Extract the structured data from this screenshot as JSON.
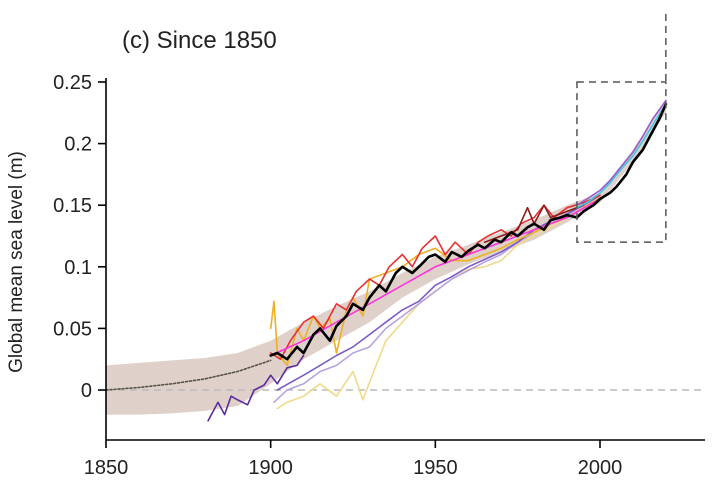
{
  "chart_data": {
    "type": "line",
    "title": "(c)  Since 1850",
    "xlabel": "",
    "ylabel": "Global mean sea level (m)",
    "xlim": [
      1850,
      2030
    ],
    "ylim": [
      -0.04,
      0.26
    ],
    "xticks": [
      1850,
      1900,
      1950,
      2000
    ],
    "yticks": [
      0.25,
      0.2,
      0.15,
      0.1,
      0.05,
      0
    ],
    "ytick_labels": [
      "0.25",
      "0.2",
      "0.15",
      "0.1",
      "0.05",
      "0"
    ],
    "grid": false,
    "legend": "none",
    "zero_line": {
      "y": 0,
      "style": "dashed",
      "color": "#bbbbbb"
    },
    "inset_box": {
      "x": [
        1993,
        2020
      ],
      "y": [
        0.12,
        0.25
      ],
      "style": "dashed"
    },
    "uncertainty_band": {
      "color": "#d9c8c1",
      "x": [
        1850,
        1860,
        1870,
        1880,
        1890,
        1900,
        1910,
        1920,
        1930,
        1940,
        1950,
        1960,
        1970,
        1980,
        1990,
        2000,
        2010,
        2020
      ],
      "lower": [
        -0.02,
        -0.02,
        -0.019,
        -0.017,
        -0.013,
        0.005,
        0.025,
        0.04,
        0.055,
        0.075,
        0.09,
        0.102,
        0.112,
        0.122,
        0.136,
        0.152,
        0.185,
        0.225
      ],
      "upper": [
        0.02,
        0.022,
        0.024,
        0.026,
        0.03,
        0.04,
        0.055,
        0.068,
        0.08,
        0.095,
        0.108,
        0.118,
        0.128,
        0.138,
        0.15,
        0.16,
        0.195,
        0.235
      ]
    },
    "series": [
      {
        "color": "#555544",
        "dash": "2,2",
        "x": [
          1850,
          1860,
          1870,
          1880,
          1890,
          1900
        ],
        "y": [
          0.0,
          0.002,
          0.005,
          0.009,
          0.015,
          0.024
        ]
      },
      {
        "color": "#5b2c9f",
        "x": [
          1881,
          1884,
          1886,
          1888,
          1890,
          1893,
          1895,
          1898,
          1900,
          1902,
          1905,
          1908,
          1910
        ],
        "y": [
          -0.025,
          -0.01,
          -0.02,
          -0.005,
          -0.008,
          -0.012,
          0.0,
          0.004,
          0.012,
          0.005,
          0.018,
          0.02,
          0.028
        ]
      },
      {
        "color": "#f0d98a",
        "x": [
          1902,
          1905,
          1910,
          1915,
          1920,
          1925,
          1928,
          1932,
          1935,
          1940,
          1945,
          1950,
          1955,
          1960,
          1965,
          1970,
          1975,
          1980,
          1985,
          1990,
          1995,
          2000
        ],
        "y": [
          -0.015,
          -0.01,
          -0.005,
          0.005,
          -0.005,
          0.015,
          -0.008,
          0.02,
          0.04,
          0.055,
          0.07,
          0.08,
          0.09,
          0.098,
          0.1,
          0.105,
          0.118,
          0.125,
          0.132,
          0.14,
          0.148,
          0.156
        ]
      },
      {
        "color": "#b8a3dc",
        "x": [
          1901,
          1905,
          1910,
          1915,
          1920,
          1925,
          1930,
          1935,
          1940,
          1945,
          1950,
          1955,
          1960,
          1965,
          1970,
          1975,
          1980,
          1985,
          1990,
          1995,
          2000
        ],
        "y": [
          -0.01,
          0.0,
          0.005,
          0.015,
          0.02,
          0.03,
          0.035,
          0.05,
          0.06,
          0.07,
          0.08,
          0.09,
          0.097,
          0.104,
          0.11,
          0.12,
          0.128,
          0.135,
          0.142,
          0.15,
          0.158
        ]
      },
      {
        "color": "#7b5cc6",
        "x": [
          1902,
          1906,
          1910,
          1915,
          1920,
          1925,
          1930,
          1935,
          1940,
          1945,
          1950,
          1955,
          1960,
          1965,
          1970,
          1975,
          1980,
          1985,
          1990,
          1995,
          2000
        ],
        "y": [
          0.0,
          0.006,
          0.012,
          0.02,
          0.028,
          0.035,
          0.045,
          0.055,
          0.065,
          0.072,
          0.085,
          0.092,
          0.1,
          0.106,
          0.112,
          0.12,
          0.13,
          0.137,
          0.143,
          0.15,
          0.158
        ]
      },
      {
        "color": "#f0b020",
        "x": [
          1900,
          1901,
          1902,
          1905,
          1908,
          1910,
          1913,
          1915,
          1918,
          1920,
          1923,
          1925,
          1928,
          1930,
          1935,
          1940,
          1945,
          1950,
          1955,
          1960,
          1965,
          1970,
          1975,
          1980,
          1985,
          1990,
          1995,
          2000
        ],
        "y": [
          0.05,
          0.072,
          0.03,
          0.02,
          0.05,
          0.04,
          0.06,
          0.05,
          0.058,
          0.03,
          0.065,
          0.075,
          0.06,
          0.09,
          0.095,
          0.1,
          0.11,
          0.115,
          0.105,
          0.105,
          0.11,
          0.115,
          0.122,
          0.128,
          0.135,
          0.14,
          0.148,
          0.156
        ]
      },
      {
        "color": "#e83030",
        "x": [
          1900,
          1903,
          1906,
          1910,
          1913,
          1916,
          1920,
          1923,
          1926,
          1930,
          1933,
          1936,
          1940,
          1943,
          1946,
          1950,
          1953,
          1956,
          1960,
          1963,
          1966,
          1970,
          1973,
          1976,
          1980,
          1983,
          1986,
          1990,
          1995,
          2000
        ],
        "y": [
          0.03,
          0.025,
          0.04,
          0.055,
          0.06,
          0.05,
          0.07,
          0.065,
          0.08,
          0.09,
          0.085,
          0.1,
          0.11,
          0.1,
          0.115,
          0.125,
          0.11,
          0.12,
          0.11,
          0.12,
          0.125,
          0.13,
          0.125,
          0.135,
          0.14,
          0.15,
          0.14,
          0.148,
          0.152,
          0.158
        ]
      },
      {
        "color": "#ff33dd",
        "x": [
          1900,
          1910,
          1920,
          1930,
          1940,
          1950,
          1960,
          1970,
          1980,
          1990,
          2000
        ],
        "y": [
          0.028,
          0.04,
          0.055,
          0.07,
          0.085,
          0.1,
          0.11,
          0.12,
          0.13,
          0.14,
          0.155
        ]
      },
      {
        "color": "#8b1a1a",
        "x": [
          1965,
          1970,
          1975,
          1978,
          1980,
          1983,
          1985,
          1990,
          1995
        ],
        "y": [
          0.12,
          0.125,
          0.13,
          0.148,
          0.135,
          0.15,
          0.14,
          0.145,
          0.15
        ]
      },
      {
        "color": "#40c8e0",
        "x": [
          1993,
          1996,
          2000,
          2003,
          2006,
          2010,
          2013,
          2016,
          2019
        ],
        "y": [
          0.148,
          0.152,
          0.16,
          0.168,
          0.178,
          0.19,
          0.202,
          0.215,
          0.228
        ]
      },
      {
        "color": "#9a5acc",
        "x": [
          1993,
          1996,
          2000,
          2003,
          2006,
          2010,
          2013,
          2016,
          2020
        ],
        "y": [
          0.15,
          0.155,
          0.162,
          0.17,
          0.18,
          0.193,
          0.206,
          0.22,
          0.235
        ]
      },
      {
        "color": "#000000",
        "width": 2.6,
        "x": [
          1900,
          1902,
          1905,
          1908,
          1910,
          1913,
          1915,
          1918,
          1920,
          1923,
          1925,
          1928,
          1930,
          1933,
          1935,
          1938,
          1940,
          1943,
          1945,
          1948,
          1950,
          1953,
          1955,
          1958,
          1960,
          1963,
          1965,
          1968,
          1970,
          1973,
          1975,
          1978,
          1980,
          1983,
          1985,
          1988,
          1990,
          1993,
          1995,
          1998,
          2000,
          2003,
          2005,
          2008,
          2010,
          2013,
          2015,
          2018,
          2020
        ],
        "y": [
          0.028,
          0.03,
          0.025,
          0.035,
          0.03,
          0.045,
          0.05,
          0.04,
          0.052,
          0.06,
          0.07,
          0.065,
          0.075,
          0.085,
          0.08,
          0.095,
          0.1,
          0.095,
          0.1,
          0.108,
          0.11,
          0.104,
          0.112,
          0.108,
          0.113,
          0.118,
          0.115,
          0.122,
          0.12,
          0.128,
          0.125,
          0.132,
          0.135,
          0.13,
          0.138,
          0.14,
          0.142,
          0.14,
          0.145,
          0.15,
          0.155,
          0.16,
          0.165,
          0.175,
          0.185,
          0.195,
          0.205,
          0.22,
          0.232
        ]
      }
    ]
  }
}
